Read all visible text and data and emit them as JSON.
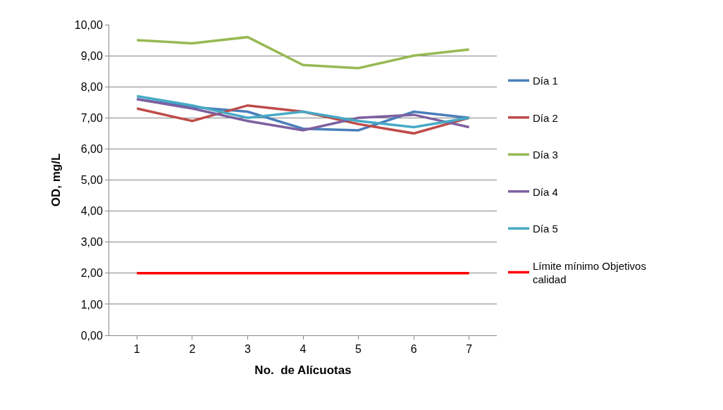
{
  "chart_data": {
    "type": "line",
    "xlabel": "No.  de Alícuotas",
    "ylabel": "OD, mg/L",
    "categories": [
      "1",
      "2",
      "3",
      "4",
      "5",
      "6",
      "7"
    ],
    "series": [
      {
        "name": "Día 1",
        "color": "#4a7ebb",
        "values": [
          7.6,
          7.35,
          7.2,
          6.65,
          6.6,
          7.2,
          7.0
        ]
      },
      {
        "name": "Día 2",
        "color": "#be4b48",
        "values": [
          7.3,
          6.9,
          7.4,
          7.2,
          6.8,
          6.5,
          7.0
        ]
      },
      {
        "name": "Día 3",
        "color": "#98b954",
        "values": [
          9.5,
          9.4,
          9.6,
          8.7,
          8.6,
          9.0,
          9.2
        ]
      },
      {
        "name": "Día 4",
        "color": "#7d60a0",
        "values": [
          7.6,
          7.3,
          6.9,
          6.6,
          7.0,
          7.1,
          6.7
        ]
      },
      {
        "name": "Día 5",
        "color": "#46aac5",
        "values": [
          7.7,
          7.4,
          7.0,
          7.2,
          6.9,
          6.7,
          7.0
        ]
      },
      {
        "name": "Límite mínimo Objetivos calidad",
        "color": "#ff0000",
        "values": [
          2.0,
          2.0,
          2.0,
          2.0,
          2.0,
          2.0,
          2.0
        ]
      }
    ],
    "ylim": [
      0,
      10
    ],
    "yticks": [
      {
        "value": 0,
        "label": "0,00"
      },
      {
        "value": 1,
        "label": "1,00"
      },
      {
        "value": 2,
        "label": "2,00"
      },
      {
        "value": 3,
        "label": "3,00"
      },
      {
        "value": 4,
        "label": "4,00"
      },
      {
        "value": 5,
        "label": "5,00"
      },
      {
        "value": 6,
        "label": "6,00"
      },
      {
        "value": 7,
        "label": "7,00"
      },
      {
        "value": 8,
        "label": "8,00"
      },
      {
        "value": 9,
        "label": "9,00"
      },
      {
        "value": 10,
        "label": "10,00"
      }
    ],
    "grid": "y",
    "legend": "right",
    "marker": "none",
    "line_style": "solid"
  }
}
